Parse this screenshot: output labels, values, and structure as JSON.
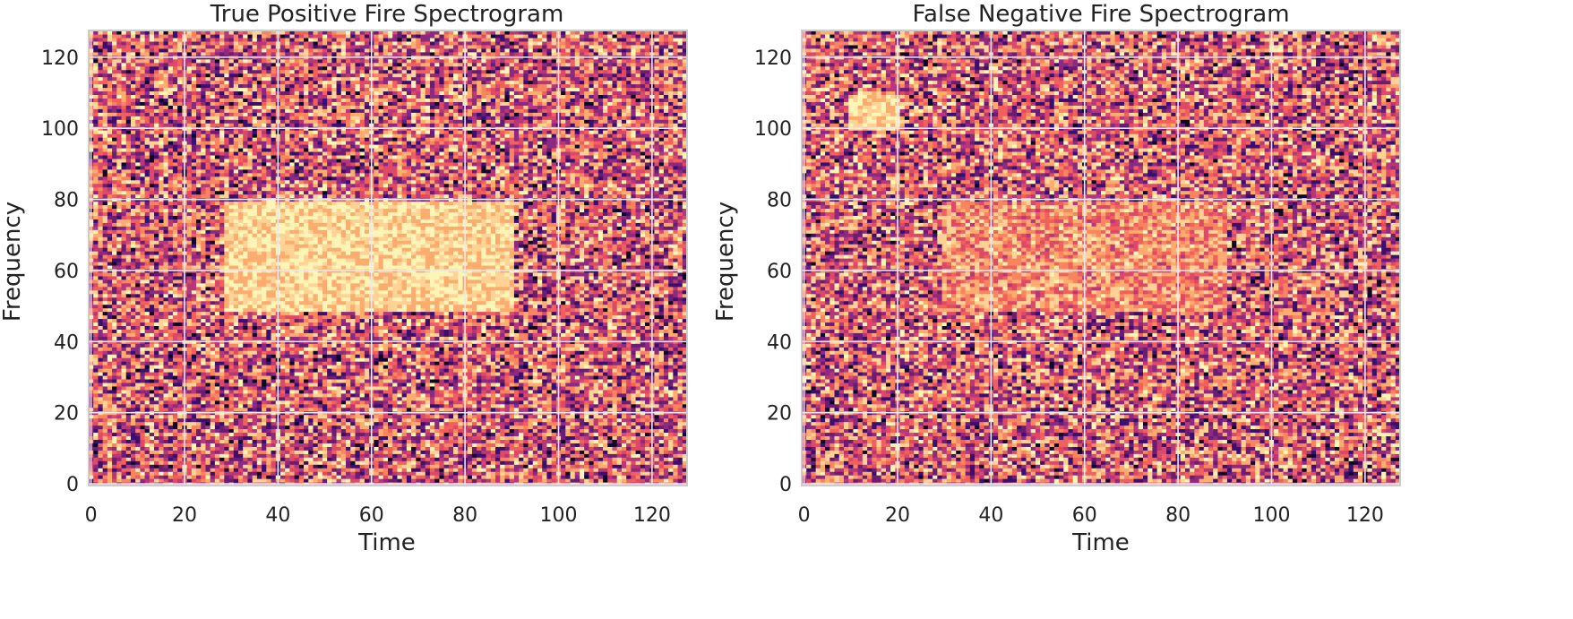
{
  "chart_data": [
    {
      "type": "heatmap",
      "title": "True Positive Fire Spectrogram",
      "xlabel": "Time",
      "ylabel": "Frequency",
      "xlim": [
        0,
        128
      ],
      "ylim": [
        0,
        128
      ],
      "x_ticks": [
        "0",
        "20",
        "40",
        "60",
        "80",
        "100",
        "120"
      ],
      "y_ticks": [
        "0",
        "20",
        "40",
        "60",
        "80",
        "100",
        "120"
      ],
      "grid": true,
      "colormap": "magma",
      "background": "random noise (values 0–1) over full 128×128 grid",
      "highlight_regions": [
        {
          "time": [
            29,
            90
          ],
          "frequency": [
            49,
            79
          ],
          "level": "high"
        }
      ]
    },
    {
      "type": "heatmap",
      "title": "False Negative Fire Spectrogram",
      "xlabel": "Time",
      "ylabel": "Frequency",
      "xlim": [
        0,
        128
      ],
      "ylim": [
        0,
        128
      ],
      "x_ticks": [
        "0",
        "20",
        "40",
        "60",
        "80",
        "100",
        "120"
      ],
      "y_ticks": [
        "0",
        "20",
        "40",
        "60",
        "80",
        "100",
        "120"
      ],
      "grid": true,
      "colormap": "magma",
      "background": "random noise (values 0–1) over full 128×128 grid",
      "highlight_regions": [
        {
          "time": [
            10,
            20
          ],
          "frequency": [
            100,
            109
          ],
          "level": "high"
        },
        {
          "time": [
            30,
            90
          ],
          "frequency": [
            49,
            79
          ],
          "level": "faint"
        }
      ]
    }
  ],
  "colors": {
    "grid": "#e8e8f4",
    "frame": "#cccccc",
    "palette": [
      "#0d0829",
      "#3b0f70",
      "#6a1d73",
      "#8c2981",
      "#b73779",
      "#de4968",
      "#f1605d",
      "#f8855f",
      "#fcac6f",
      "#fed395",
      "#fcf5b6"
    ]
  }
}
